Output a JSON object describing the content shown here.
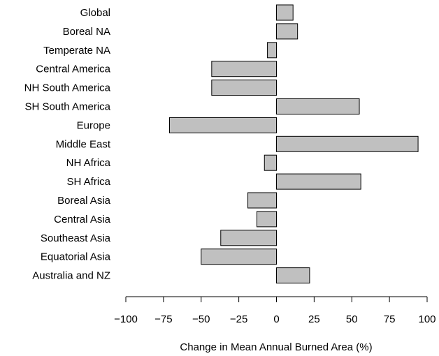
{
  "chart_data": {
    "type": "bar",
    "orientation": "horizontal",
    "categories": [
      "Global",
      "Boreal NA",
      "Temperate NA",
      "Central America",
      "NH South America",
      "SH South America",
      "Europe",
      "Middle East",
      "NH Africa",
      "SH Africa",
      "Boreal Asia",
      "Central Asia",
      "Southeast Asia",
      "Equatorial Asia",
      "Australia and NZ"
    ],
    "values": [
      11,
      14,
      -6,
      -43,
      -43,
      55,
      -71,
      94,
      -8,
      56,
      -19,
      -13,
      -37,
      -50,
      22
    ],
    "xlabel": "Change in Mean Annual Burned Area (%)",
    "ylabel": "",
    "title": "",
    "xlim": [
      -100,
      100
    ],
    "xticks": [
      -100,
      -75,
      -50,
      -25,
      0,
      25,
      50,
      75,
      100
    ],
    "xtick_labels": [
      "−100",
      "−75",
      "−50",
      "−25",
      "0",
      "25",
      "50",
      "75",
      "100"
    ],
    "grid": false,
    "legend": "none",
    "bar_color": "#c0c0c0",
    "bar_edge_color": "#000000"
  }
}
